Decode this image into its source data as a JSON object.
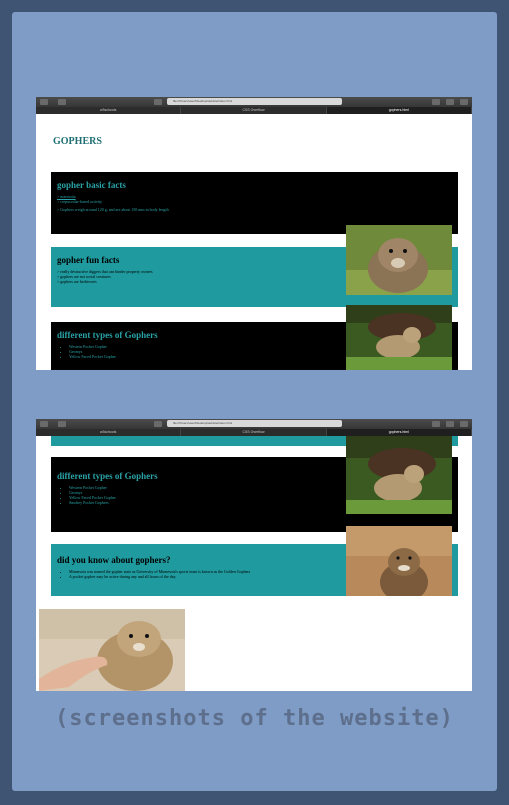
{
  "browser": {
    "url": "file:///Users/user/Desktop/website/index.html",
    "tabs": [
      "w3schools",
      "CSS Overflow",
      "gophers.html"
    ]
  },
  "page": {
    "title": "GOPHERS"
  },
  "basic": {
    "heading": "gopher basic facts",
    "lines": [
      "> marmotta",
      "> crepuscular-based activity",
      "> Gophers weigh around 120 g, and are about 150 mm in body length"
    ]
  },
  "fun": {
    "heading": "gopher fun facts",
    "lines": [
      "> really destructive diggers that can hinder property owners",
      "> gophers are not social creatures",
      "> gophers are herbivores"
    ]
  },
  "types": {
    "heading": "different types of Gophers",
    "items": [
      "Western Pocket Gopher",
      "Geomys",
      "Yellow Faced Pocket Gopher",
      "Smokey Pocket Gophers"
    ]
  },
  "know": {
    "heading": "did you know about gophers?",
    "items": [
      "Minnesota was named the gopher state as University of Minnesota's sports team is known as the Golden Gophers",
      "A pocket gopher may be active during any and all hours of the day."
    ]
  },
  "caption": "(screenshots of the website)"
}
